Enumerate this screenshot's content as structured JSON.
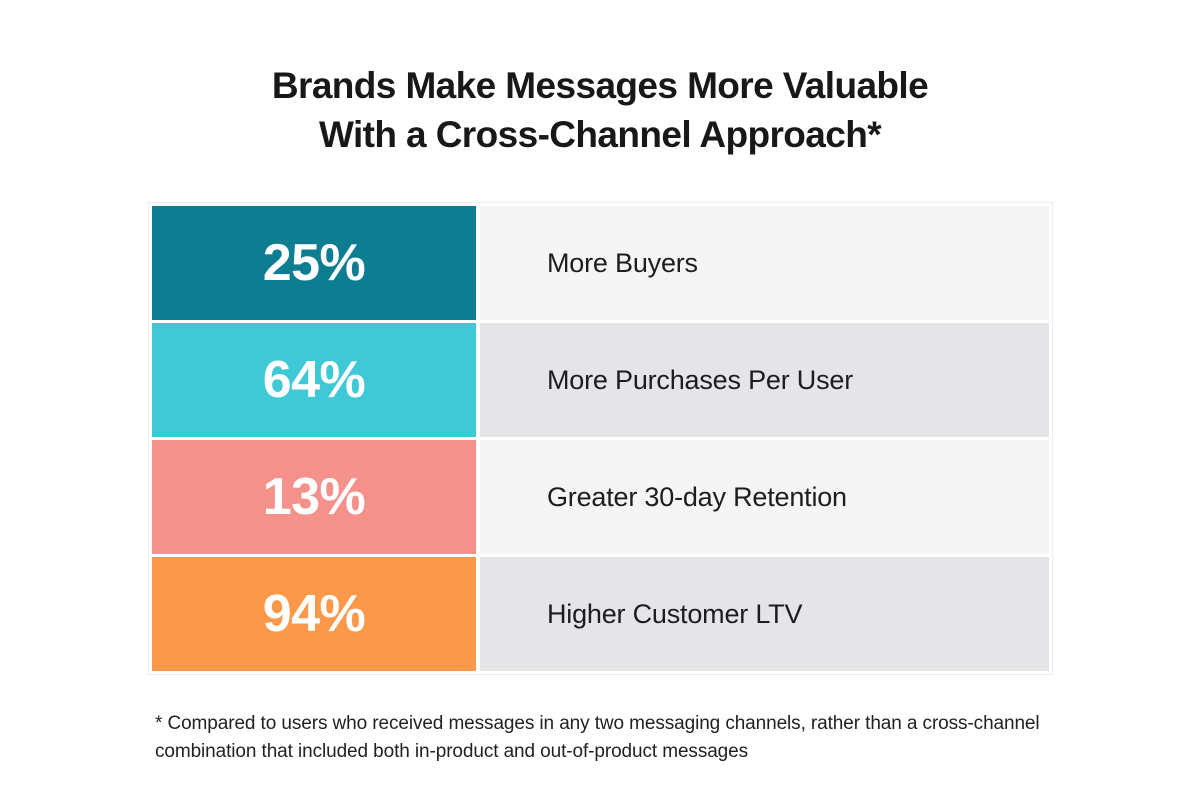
{
  "title": {
    "line1": "Brands Make Messages More Valuable",
    "line2": "With a Cross-Channel Approach*"
  },
  "footnote": {
    "line1": "* Compared to users who received messages in any two messaging channels, rather than a cross-channel",
    "line2": "combination that included both in-product and out-of-product messages"
  },
  "colors": {
    "row_grays": [
      "#f5f5f6",
      "#e5e5e8",
      "#f5f5f6",
      "#e5e5e8"
    ],
    "table_border": "#ededee",
    "value_text": "#ffffff",
    "label_text": "#1c1d1f"
  },
  "chart_data": {
    "type": "table",
    "title": "Brands Make Messages More Valuable With a Cross-Channel Approach*",
    "legend_position": "none",
    "grid": false,
    "rows": [
      {
        "value": "25%",
        "label": "More Buyers",
        "color": "#0d7e91"
      },
      {
        "value": "64%",
        "label": "More Purchases Per User",
        "color": "#3fc8d6"
      },
      {
        "value": "13%",
        "label": "Greater 30-day Retention",
        "color": "#f5918b"
      },
      {
        "value": "94%",
        "label": "Higher Customer LTV",
        "color": "#fb9849"
      }
    ],
    "footnote": "* Compared to users who received messages in any two messaging channels, rather than a cross-channel combination that included both in-product and out-of-product messages"
  }
}
